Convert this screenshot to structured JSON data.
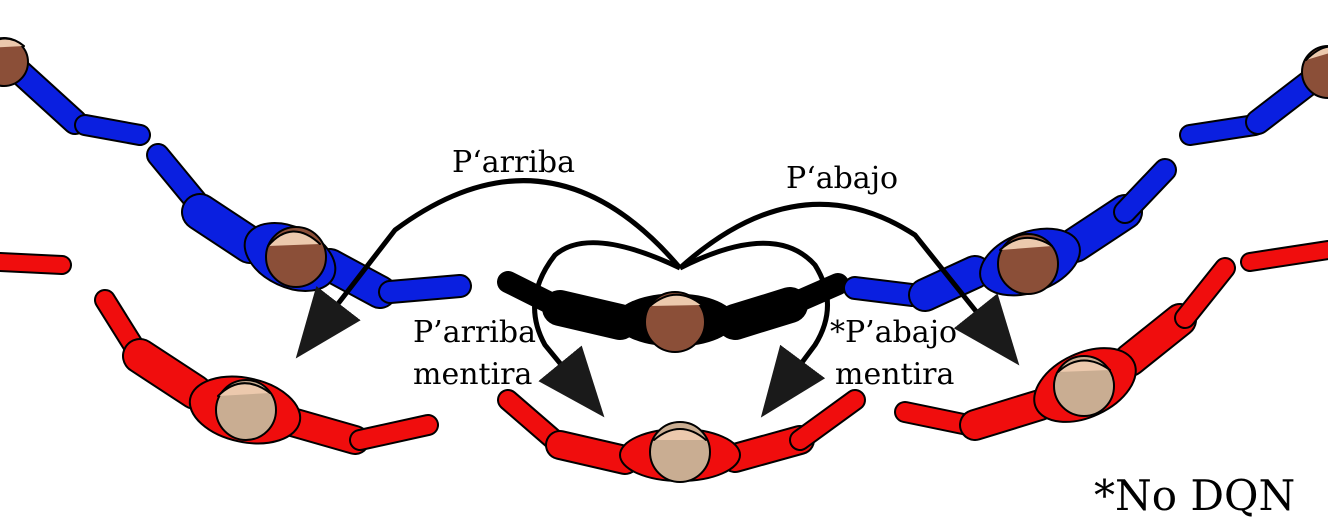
{
  "labels": {
    "arriba": "P‘arriba",
    "abajo": "P‘abajo",
    "arriba_mentira_line1": "P’arriba",
    "arriba_mentira_line2": "mentira",
    "abajo_mentira_line1": "*P’abajo",
    "abajo_mentira_line2": "mentira",
    "footnote": "*No DQN"
  },
  "colors": {
    "blue": "#0a1fe0",
    "red": "#f00d0d",
    "black": "#000000",
    "head_dark": "#8b4f38",
    "head_light": "#c9ad92",
    "hair": "#ecc9ad",
    "arrow": "#000000"
  }
}
